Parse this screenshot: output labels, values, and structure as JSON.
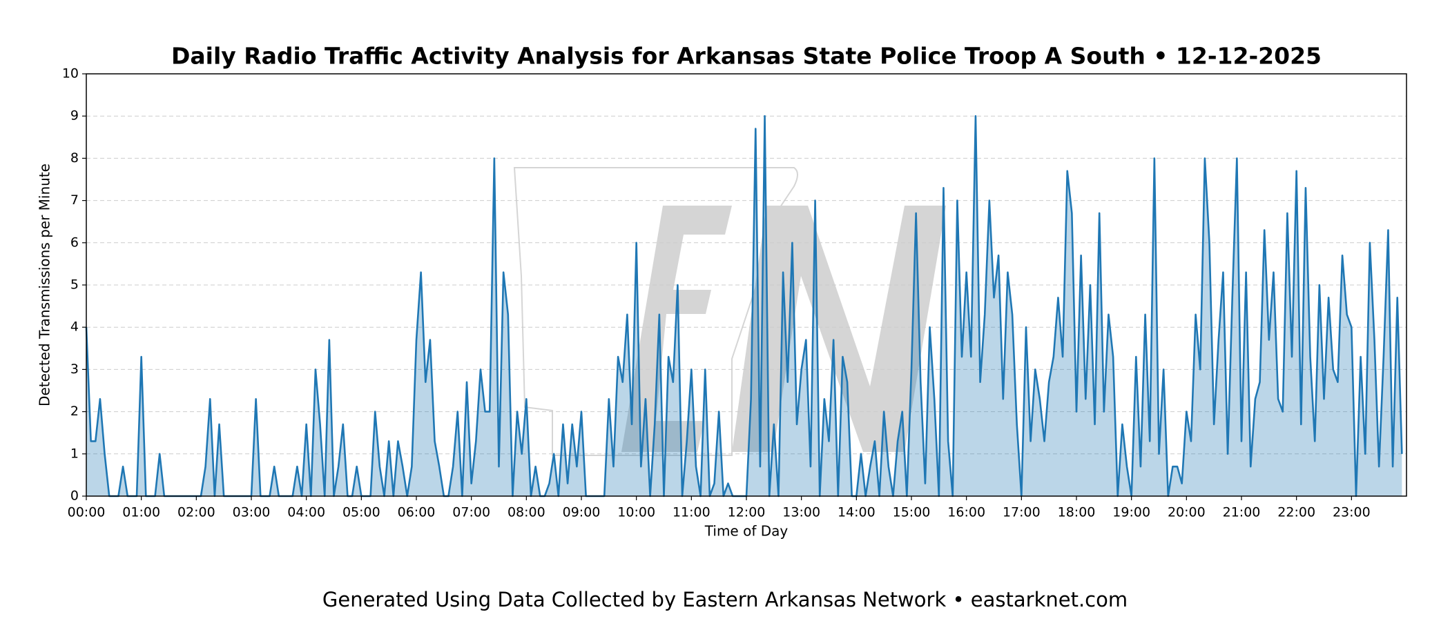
{
  "chart_data": {
    "type": "line",
    "title": "Daily Radio Traffic Activity Analysis for Arkansas State Police Troop A South • 12-12-2025",
    "xlabel": "Time of Day",
    "ylabel": "Detected Transmissions per Minute",
    "footer": "Generated Using Data Collected by Eastern Arkansas Network • eastarknet.com",
    "xlim": [
      0,
      1440
    ],
    "ylim": [
      0,
      10
    ],
    "yticks": [
      0,
      1,
      2,
      3,
      4,
      5,
      6,
      7,
      8,
      9,
      10
    ],
    "xticks": [
      {
        "value": 0,
        "label": "00:00"
      },
      {
        "value": 60,
        "label": "01:00"
      },
      {
        "value": 120,
        "label": "02:00"
      },
      {
        "value": 180,
        "label": "03:00"
      },
      {
        "value": 240,
        "label": "04:00"
      },
      {
        "value": 300,
        "label": "05:00"
      },
      {
        "value": 360,
        "label": "06:00"
      },
      {
        "value": 420,
        "label": "07:00"
      },
      {
        "value": 480,
        "label": "08:00"
      },
      {
        "value": 540,
        "label": "09:00"
      },
      {
        "value": 600,
        "label": "10:00"
      },
      {
        "value": 660,
        "label": "11:00"
      },
      {
        "value": 720,
        "label": "12:00"
      },
      {
        "value": 780,
        "label": "13:00"
      },
      {
        "value": 840,
        "label": "14:00"
      },
      {
        "value": 900,
        "label": "15:00"
      },
      {
        "value": 960,
        "label": "16:00"
      },
      {
        "value": 1020,
        "label": "17:00"
      },
      {
        "value": 1080,
        "label": "18:00"
      },
      {
        "value": 1140,
        "label": "19:00"
      },
      {
        "value": 1200,
        "label": "20:00"
      },
      {
        "value": 1260,
        "label": "21:00"
      },
      {
        "value": 1320,
        "label": "22:00"
      },
      {
        "value": 1380,
        "label": "23:00"
      }
    ],
    "grid": true,
    "x": [
      0,
      5,
      10,
      15,
      20,
      25,
      30,
      35,
      40,
      45,
      50,
      55,
      60,
      65,
      70,
      75,
      80,
      85,
      90,
      95,
      100,
      105,
      110,
      115,
      120,
      125,
      130,
      135,
      140,
      145,
      150,
      155,
      160,
      165,
      170,
      175,
      180,
      185,
      190,
      195,
      200,
      205,
      210,
      215,
      220,
      225,
      230,
      235,
      240,
      245,
      250,
      255,
      260,
      265,
      270,
      275,
      280,
      285,
      290,
      295,
      300,
      305,
      310,
      315,
      320,
      325,
      330,
      335,
      340,
      345,
      350,
      355,
      360,
      365,
      370,
      375,
      380,
      385,
      390,
      395,
      400,
      405,
      410,
      415,
      420,
      425,
      430,
      435,
      440,
      445,
      450,
      455,
      460,
      465,
      470,
      475,
      480,
      485,
      490,
      495,
      500,
      505,
      510,
      515,
      520,
      525,
      530,
      535,
      540,
      545,
      550,
      555,
      560,
      565,
      570,
      575,
      580,
      585,
      590,
      595,
      600,
      605,
      610,
      615,
      620,
      625,
      630,
      635,
      640,
      645,
      650,
      655,
      660,
      665,
      670,
      675,
      680,
      685,
      690,
      695,
      700,
      705,
      710,
      715,
      720,
      725,
      730,
      735,
      740,
      745,
      750,
      755,
      760,
      765,
      770,
      775,
      780,
      785,
      790,
      795,
      800,
      805,
      810,
      815,
      820,
      825,
      830,
      835,
      840,
      845,
      850,
      855,
      860,
      865,
      870,
      875,
      880,
      885,
      890,
      895,
      900,
      905,
      910,
      915,
      920,
      925,
      930,
      935,
      940,
      945,
      950,
      955,
      960,
      965,
      970,
      975,
      980,
      985,
      990,
      995,
      1000,
      1005,
      1010,
      1015,
      1020,
      1025,
      1030,
      1035,
      1040,
      1045,
      1050,
      1055,
      1060,
      1065,
      1070,
      1075,
      1080,
      1085,
      1090,
      1095,
      1100,
      1105,
      1110,
      1115,
      1120,
      1125,
      1130,
      1135,
      1140,
      1145,
      1150,
      1155,
      1160,
      1165,
      1170,
      1175,
      1180,
      1185,
      1190,
      1195,
      1200,
      1205,
      1210,
      1215,
      1220,
      1225,
      1230,
      1235,
      1240,
      1245,
      1250,
      1255,
      1260,
      1265,
      1270,
      1275,
      1280,
      1285,
      1290,
      1295,
      1300,
      1305,
      1310,
      1315,
      1320,
      1325,
      1330,
      1335,
      1340,
      1345,
      1350,
      1355,
      1360,
      1365,
      1370,
      1375,
      1380,
      1385,
      1390,
      1395,
      1400,
      1405,
      1410,
      1415,
      1420,
      1425,
      1430,
      1435
    ],
    "series": [
      {
        "name": "Transmissions",
        "color": "#1f77b4",
        "values": [
          4,
          1.3,
          1.3,
          2.3,
          1,
          0,
          0,
          0,
          0.7,
          0,
          0,
          0,
          3.3,
          0,
          0,
          0,
          1,
          0,
          0,
          0,
          0,
          0,
          0,
          0,
          0,
          0,
          0.7,
          2.3,
          0,
          1.7,
          0,
          0,
          0,
          0,
          0,
          0,
          0,
          2.3,
          0,
          0,
          0,
          0.7,
          0,
          0,
          0,
          0,
          0.7,
          0,
          1.7,
          0,
          3,
          1.7,
          0,
          3.7,
          0,
          0.7,
          1.7,
          0,
          0,
          0.7,
          0,
          0,
          0,
          2,
          0.7,
          0,
          1.3,
          0,
          1.3,
          0.7,
          0,
          0.7,
          3.7,
          5.3,
          2.7,
          3.7,
          1.3,
          0.7,
          0,
          0,
          0.7,
          2,
          0,
          2.7,
          0.3,
          1.3,
          3,
          2,
          2,
          8,
          0.7,
          5.3,
          4.3,
          0,
          2,
          1,
          2.3,
          0,
          0.7,
          0,
          0,
          0.3,
          1,
          0,
          1.7,
          0.3,
          1.7,
          0.7,
          2,
          0,
          0,
          0,
          0,
          0,
          2.3,
          0.7,
          3.3,
          2.7,
          4.3,
          1.7,
          6,
          0.7,
          2.3,
          0,
          1.7,
          4.3,
          0,
          3.3,
          2.7,
          5,
          0,
          1.3,
          3,
          0.7,
          0,
          3,
          0,
          0.3,
          2,
          0,
          0.3,
          0,
          0,
          0,
          0,
          2.3,
          8.7,
          0.7,
          9,
          0,
          1.7,
          0,
          5.3,
          2.7,
          6,
          1.7,
          3,
          3.7,
          0.7,
          7,
          0,
          2.3,
          1.3,
          3.7,
          0,
          3.3,
          2.7,
          0,
          0,
          1,
          0,
          0.7,
          1.3,
          0,
          2,
          0.7,
          0,
          1.3,
          2,
          0,
          3,
          6.7,
          2.7,
          0.3,
          4,
          2.3,
          0,
          7.3,
          1.3,
          0,
          7,
          3.3,
          5.3,
          3.3,
          9,
          2.7,
          4.3,
          7,
          4.7,
          5.7,
          2.3,
          5.3,
          4.3,
          1.7,
          0,
          4,
          1.3,
          3,
          2.3,
          1.3,
          2.7,
          3.3,
          4.7,
          3.3,
          7.7,
          6.7,
          2,
          5.7,
          2.3,
          5,
          1.7,
          6.7,
          2,
          4.3,
          3.3,
          0,
          1.7,
          0.7,
          0,
          3.3,
          0.7,
          4.3,
          1.3,
          8,
          1,
          3,
          0,
          0.7,
          0.7,
          0.3,
          2,
          1.3,
          4.3,
          3,
          8,
          6,
          1.7,
          3.7,
          5.3,
          1,
          4.7,
          8,
          1.3,
          5.3,
          0.7,
          2.3,
          2.7,
          6.3,
          3.7,
          5.3,
          2.3,
          2,
          6.7,
          3.3,
          7.7,
          1.7,
          7.3,
          3.3,
          1.3,
          5,
          2.3,
          4.7,
          3,
          2.7,
          5.7,
          4.3,
          4,
          0,
          3.3,
          1,
          6,
          3.7,
          0.7,
          3.3,
          6.3,
          0.7,
          4.7,
          1
        ]
      }
    ]
  }
}
